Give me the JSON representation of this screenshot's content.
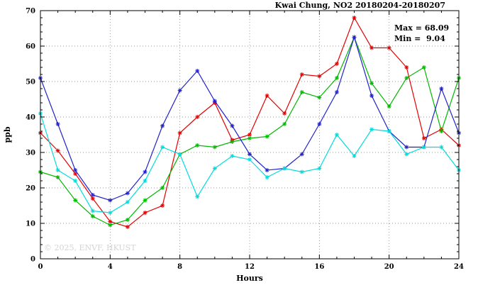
{
  "title": "Kwai Chung, NO2 20180204-20180207",
  "annotation": {
    "max_label": "Max = 68.09",
    "min_label": "Min =  9.04"
  },
  "watermark": "© 2025, ENVF, HKUST",
  "axes": {
    "xlabel": "Hours",
    "ylabel": "ppb"
  },
  "chart_data": {
    "type": "line",
    "title": "Kwai Chung, NO2 20180204-20180207",
    "xlabel": "Hours",
    "ylabel": "ppb",
    "xlim": [
      0,
      24
    ],
    "ylim": [
      0,
      70
    ],
    "xticks": [
      0,
      4,
      8,
      12,
      16,
      20,
      24
    ],
    "yticks": [
      0,
      10,
      20,
      30,
      40,
      50,
      60,
      70
    ],
    "x_minor_step": 1,
    "y_minor_step": 2,
    "grid": true,
    "legend": "none",
    "max": 68.09,
    "min": 9.04,
    "x": [
      0,
      1,
      2,
      3,
      4,
      5,
      6,
      7,
      8,
      9,
      10,
      11,
      12,
      13,
      14,
      15,
      16,
      17,
      18,
      19,
      20,
      21,
      22,
      23,
      24
    ],
    "series": [
      {
        "name": "series-red",
        "color": "#e60000",
        "values": [
          35.5,
          30.5,
          24,
          17,
          10.5,
          9,
          13,
          15,
          35.5,
          40,
          44,
          33.5,
          35,
          46,
          41,
          52,
          51.5,
          55,
          68,
          59.5,
          59.5,
          54,
          34,
          36.5,
          32
        ]
      },
      {
        "name": "series-green",
        "color": "#00b800",
        "values": [
          24.5,
          23,
          16.5,
          12,
          9.5,
          11,
          16.5,
          20,
          29.5,
          32,
          31.5,
          33,
          34,
          34.5,
          38,
          47,
          45.5,
          51,
          62.5,
          49.5,
          43,
          51,
          54,
          36,
          51
        ]
      },
      {
        "name": "series-blue",
        "color": "#2222cc",
        "values": [
          51,
          38,
          25,
          18,
          16.5,
          18.5,
          24.5,
          37.5,
          47.5,
          53,
          44.5,
          37.5,
          29.5,
          25,
          25.5,
          29.5,
          38,
          47,
          62.5,
          46,
          36,
          31.5,
          31.5,
          48,
          35.5
        ]
      },
      {
        "name": "series-cyan",
        "color": "#00dcdc",
        "values": [
          41,
          25,
          22,
          13.5,
          13,
          16,
          22,
          31.5,
          29.5,
          17.5,
          25.5,
          29,
          28,
          23,
          25.5,
          24.5,
          25.5,
          35,
          29,
          36.5,
          36,
          29.5,
          31.5,
          31.5,
          25
        ]
      }
    ]
  }
}
